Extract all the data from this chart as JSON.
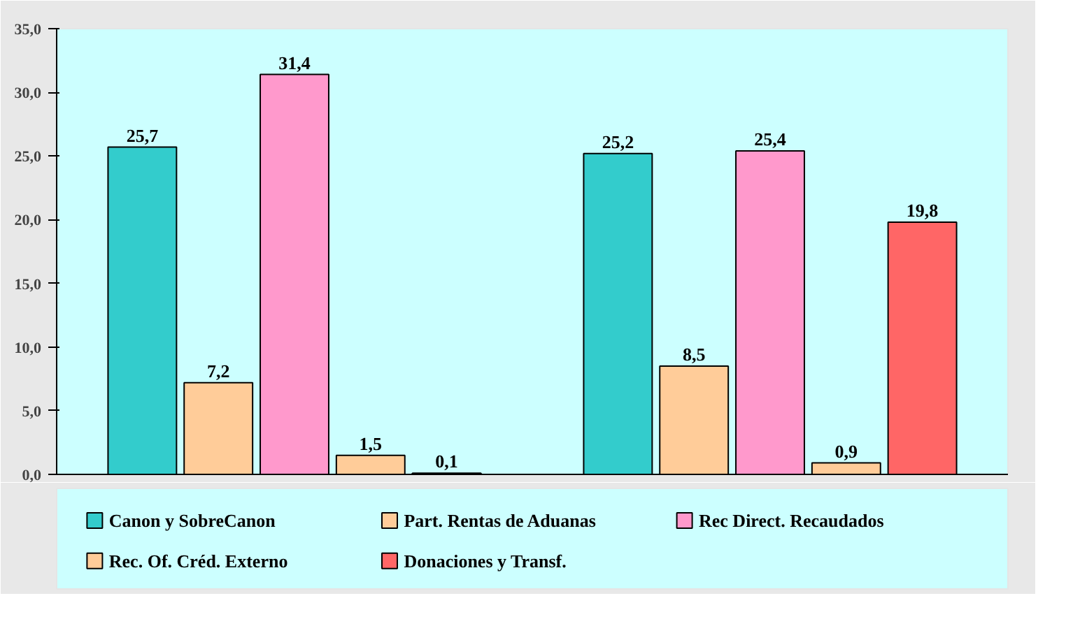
{
  "chart_data": {
    "type": "bar",
    "categories": [
      null,
      null
    ],
    "series": [
      {
        "name": "Canon y SobreCanon",
        "color": "#33cccc",
        "values": [
          25.7,
          25.2
        ],
        "value_labels": [
          "25,7",
          "25,2"
        ]
      },
      {
        "name": "Part. Rentas de Aduanas",
        "color": "#ffcc99",
        "values": [
          7.2,
          8.5
        ],
        "value_labels": [
          "7,2",
          "8,5"
        ]
      },
      {
        "name": "Rec Direct. Recaudados",
        "color": "#ff99cc",
        "values": [
          31.4,
          25.4
        ],
        "value_labels": [
          "31,4",
          "25,4"
        ]
      },
      {
        "name": "Rec. Of. Créd. Externo",
        "color": "#ffcc99",
        "values": [
          1.5,
          0.9
        ],
        "value_labels": [
          "1,5",
          "0,9"
        ]
      },
      {
        "name": "Donaciones y Transf.",
        "color": "#ff6666",
        "values": [
          0.1,
          19.8
        ],
        "value_labels": [
          "0,1",
          "19,8"
        ]
      }
    ],
    "ylim": [
      0,
      35
    ],
    "yticks": [
      {
        "value": 0,
        "label": "0,0"
      },
      {
        "value": 5,
        "label": "5,0"
      },
      {
        "value": 10,
        "label": "10,0"
      },
      {
        "value": 15,
        "label": "15,0"
      },
      {
        "value": 20,
        "label": "20,0"
      },
      {
        "value": 25,
        "label": "25,0"
      },
      {
        "value": 30,
        "label": "30,0"
      },
      {
        "value": 35,
        "label": "35,0"
      }
    ],
    "grid": false,
    "legend": "bottom"
  }
}
